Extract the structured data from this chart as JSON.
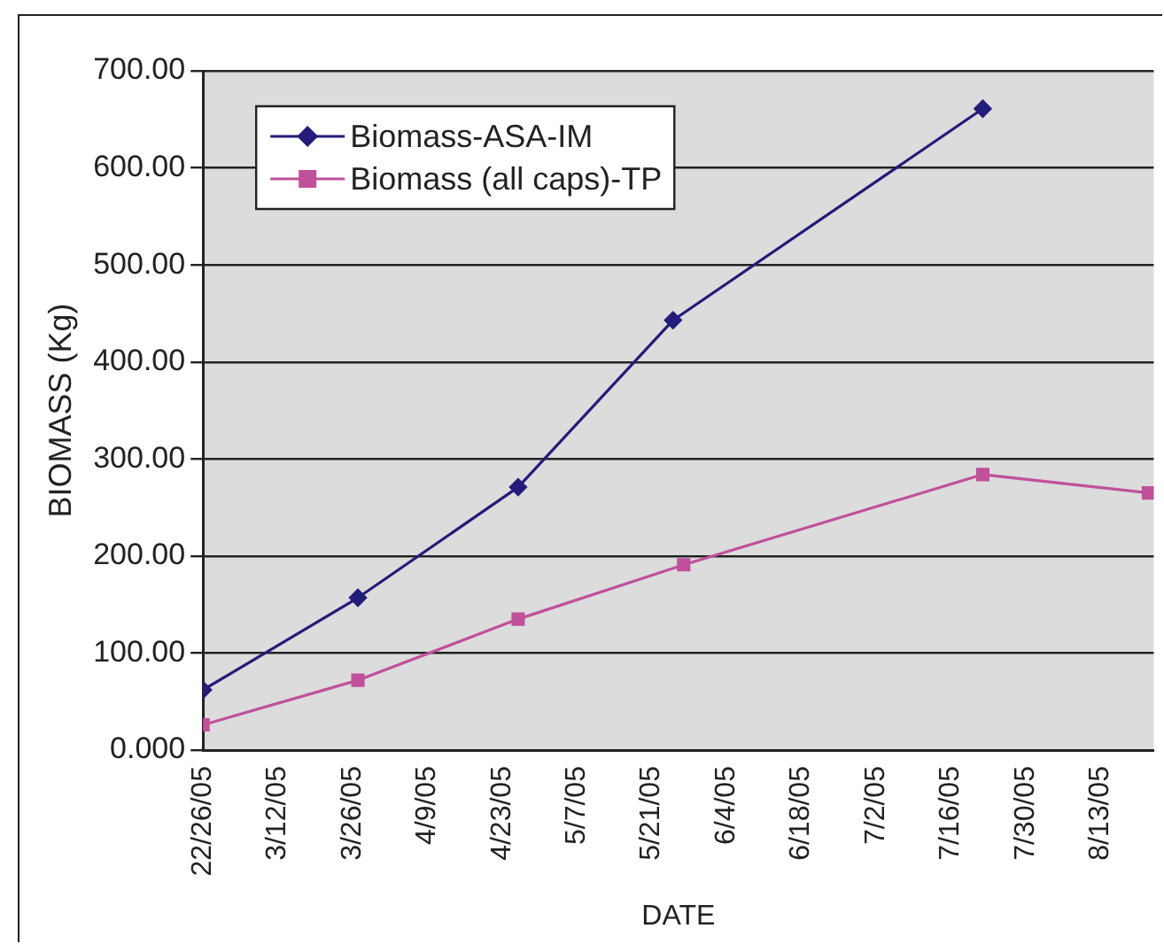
{
  "chart_data": {
    "type": "line",
    "xlabel": "DATE",
    "ylabel": "BIOMASS (Kg)",
    "xlim": [
      "2005-02-26",
      "2005-08-23"
    ],
    "xticks": [
      {
        "value": "2005-02-26",
        "label": "22/26/05"
      },
      {
        "value": "2005-03-12",
        "label": "3/12/05"
      },
      {
        "value": "2005-03-26",
        "label": "3/26/05"
      },
      {
        "value": "2005-04-09",
        "label": "4/9/05"
      },
      {
        "value": "2005-04-23",
        "label": "4/23/05"
      },
      {
        "value": "2005-05-07",
        "label": "5/7/05"
      },
      {
        "value": "2005-05-21",
        "label": "5/21/05"
      },
      {
        "value": "2005-06-04",
        "label": "6/4/05"
      },
      {
        "value": "2005-06-18",
        "label": "6/18/05"
      },
      {
        "value": "2005-07-02",
        "label": "7/2/05"
      },
      {
        "value": "2005-07-16",
        "label": "7/16/05"
      },
      {
        "value": "2005-07-30",
        "label": "7/30/05"
      },
      {
        "value": "2005-08-13",
        "label": "8/13/05"
      }
    ],
    "ylim": [
      0,
      700
    ],
    "yticks": [
      {
        "value": 0,
        "label": "0.000"
      },
      {
        "value": 100,
        "label": "100.00"
      },
      {
        "value": 200,
        "label": "200.00"
      },
      {
        "value": 300,
        "label": "300.00"
      },
      {
        "value": 400,
        "label": "400.00"
      },
      {
        "value": 500,
        "label": "500.00"
      },
      {
        "value": 600,
        "label": "600.00"
      },
      {
        "value": 700,
        "label": "700.00"
      }
    ],
    "grid": "y",
    "legend": "top left",
    "line_style": "solid",
    "series": [
      {
        "name": "Biomass-ASA-IM",
        "color": "#231c78",
        "marker": "diamond",
        "x": [
          "2005-02-26",
          "2005-03-27",
          "2005-04-26",
          "2005-05-25",
          "2005-07-22"
        ],
        "values": [
          62,
          157,
          271,
          443,
          661
        ]
      },
      {
        "name": "Biomass (all caps)-TP",
        "color": "#c0509a",
        "marker": "square",
        "x": [
          "2005-02-26",
          "2005-03-27",
          "2005-04-26",
          "2005-05-27",
          "2005-07-22",
          "2005-08-22"
        ],
        "values": [
          26,
          72,
          135,
          191,
          284,
          265
        ]
      }
    ]
  }
}
